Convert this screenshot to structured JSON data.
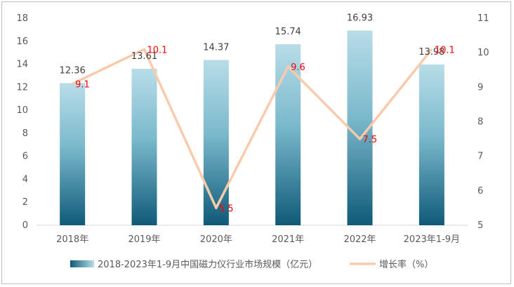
{
  "chart_data": {
    "type": "bar",
    "categories": [
      "2018年",
      "2019年",
      "2020年",
      "2021年",
      "2022年",
      "2023年1-9月"
    ],
    "series": [
      {
        "name": "2018-2023年1-9月中国磁力仪行业市场规模（亿元）",
        "type": "bar",
        "axis": "left",
        "values": [
          12.36,
          13.61,
          14.37,
          15.74,
          16.93,
          13.98
        ],
        "labels": [
          "12.36",
          "13.61",
          "14.37",
          "15.74",
          "16.93",
          "13.98"
        ],
        "color_top": "#b8dde8",
        "color_bottom": "#0f5a78"
      },
      {
        "name": "增长率（%）",
        "type": "line",
        "axis": "right",
        "values": [
          9.1,
          10.1,
          5.5,
          9.6,
          7.5,
          10.1
        ],
        "labels": [
          "9.1",
          "10.1",
          "5.5",
          "9.6",
          "7.5",
          "10.1"
        ],
        "color": "#f8cbad",
        "label_color": "#ff0000"
      }
    ],
    "y_left": {
      "lim": [
        0,
        18
      ],
      "ticks": [
        "0",
        "2",
        "4",
        "6",
        "8",
        "10",
        "12",
        "14",
        "16",
        "18"
      ]
    },
    "y_right": {
      "lim": [
        5,
        11
      ],
      "ticks": [
        "5",
        "6",
        "7",
        "8",
        "9",
        "10",
        "11"
      ]
    },
    "grid": false,
    "legend_position": "bottom"
  }
}
